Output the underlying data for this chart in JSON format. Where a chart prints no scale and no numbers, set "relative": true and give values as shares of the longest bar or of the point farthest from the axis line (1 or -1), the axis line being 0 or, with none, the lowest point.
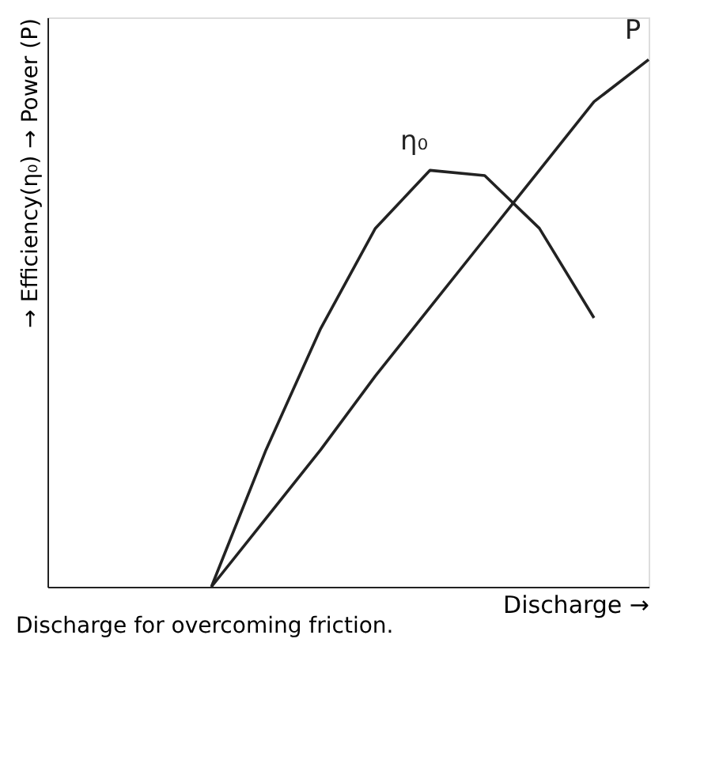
{
  "chart_data": {
    "type": "line",
    "relative": true,
    "xlabel": "Discharge →",
    "ylabel": "→ Efficiency(η₀) → Power (P)",
    "categories": [
      null,
      null,
      null,
      null,
      null,
      null,
      null,
      null,
      null,
      null,
      null,
      null
    ],
    "series": [
      {
        "name": "η₀",
        "color": "#222222",
        "values": [
          null,
          null,
          null,
          0,
          0.26,
          0.49,
          0.68,
          0.79,
          0.78,
          0.68,
          0.51,
          null
        ]
      },
      {
        "name": "P",
        "color": "#222222",
        "values": [
          null,
          null,
          null,
          0,
          0.13,
          0.26,
          0.4,
          0.53,
          0.66,
          0.79,
          0.92,
          1
        ]
      }
    ],
    "annotations": [
      "Discharge for overcoming friction."
    ],
    "grid": false,
    "line_style": "solid",
    "marker": "none"
  }
}
